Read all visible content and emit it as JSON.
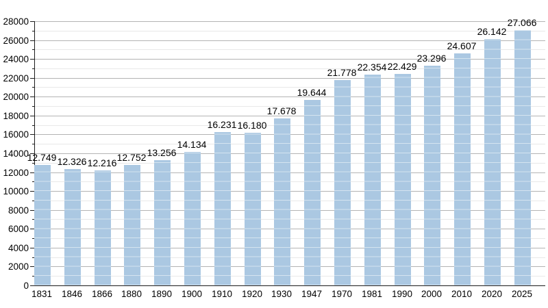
{
  "chart_data": {
    "type": "bar",
    "title": "",
    "xlabel": "",
    "ylabel": "",
    "categories": [
      "1831",
      "1846",
      "1866",
      "1880",
      "1890",
      "1900",
      "1910",
      "1920",
      "1930",
      "1947",
      "1970",
      "1981",
      "1990",
      "2000",
      "2010",
      "2020",
      "2025"
    ],
    "values": [
      12749,
      12326,
      12216,
      12752,
      13256,
      14134,
      16231,
      16180,
      17678,
      19644,
      21778,
      22354,
      22429,
      23296,
      24607,
      26142,
      27066
    ],
    "value_labels": [
      "12.749",
      "12.326",
      "12.216",
      "12.752",
      "13.256",
      "14.134",
      "16.231",
      "16.180",
      "17.678",
      "19.644",
      "21.778",
      "22.354",
      "22.429",
      "23.296",
      "24.607",
      "26.142",
      "27.066"
    ],
    "ylim": [
      0,
      28000
    ],
    "ytick_step": 2000,
    "yminor_step": 1000,
    "grid": "on",
    "legend_position": "none",
    "bar_color": "#abc8e2",
    "grid_major_color": "#b3b3b3",
    "grid_minor_color": "#e8e8e8",
    "axis_color": "#1a1a1a",
    "text_color": "#000000"
  }
}
